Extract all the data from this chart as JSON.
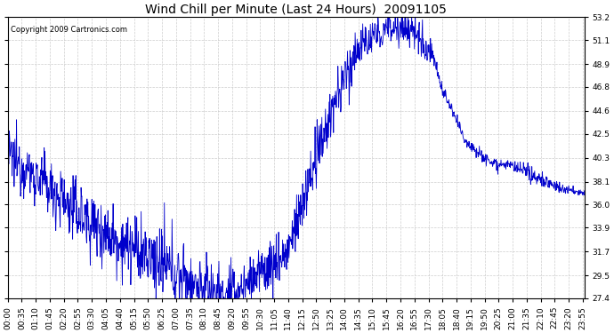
{
  "title": "Wind Chill per Minute (Last 24 Hours)  20091105",
  "copyright": "Copyright 2009 Cartronics.com",
  "line_color": "#0000cc",
  "background_color": "#ffffff",
  "grid_color": "#c8c8c8",
  "ylim": [
    27.4,
    53.2
  ],
  "yticks": [
    27.4,
    29.5,
    31.7,
    33.9,
    36.0,
    38.1,
    40.3,
    42.5,
    44.6,
    46.8,
    48.9,
    51.1,
    53.2
  ],
  "title_fontsize": 10,
  "tick_fontsize": 6.5,
  "copyright_fontsize": 6,
  "figsize": [
    6.9,
    3.75
  ],
  "dpi": 100
}
